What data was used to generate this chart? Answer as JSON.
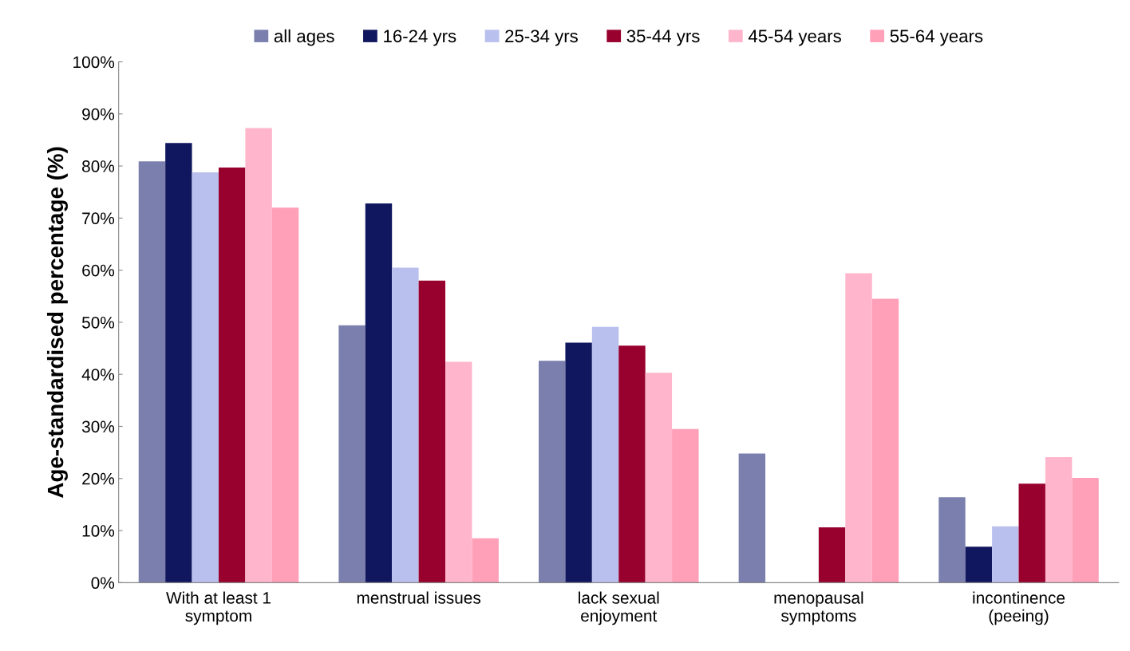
{
  "chart_data": {
    "type": "bar",
    "ylabel": "Age-standardised percentage (%)",
    "categories": [
      "With at least 1\nsymptom",
      "menstrual issues",
      "lack sexual\nenjoyment",
      "menopausal\nsymptoms",
      "incontinence\n(peeing)"
    ],
    "series": [
      {
        "name": "all ages",
        "color": "#7a7fae",
        "values": [
          80.9,
          49.4,
          42.6,
          24.8,
          16.4
        ]
      },
      {
        "name": "16-24 yrs",
        "color": "#11175e",
        "values": [
          84.4,
          72.8,
          46.1,
          null,
          6.9
        ]
      },
      {
        "name": "25-34 yrs",
        "color": "#b9c0ee",
        "values": [
          78.8,
          60.5,
          49.1,
          null,
          10.8
        ]
      },
      {
        "name": "35-44 yrs",
        "color": "#98002e",
        "values": [
          79.7,
          58.0,
          45.5,
          10.6,
          19.0
        ]
      },
      {
        "name": "45-54 years",
        "color": "#ffb6cc",
        "values": [
          87.3,
          42.4,
          40.3,
          59.4,
          24.1
        ]
      },
      {
        "name": "55-64 years",
        "color": "#ff9fb8",
        "values": [
          72.0,
          8.5,
          29.5,
          54.5,
          20.1
        ]
      }
    ],
    "ylim": [
      0,
      100
    ],
    "yticks": [
      {
        "value": 0,
        "label": "0%"
      },
      {
        "value": 10,
        "label": "10%"
      },
      {
        "value": 20,
        "label": "20%"
      },
      {
        "value": 30,
        "label": "30%"
      },
      {
        "value": 40,
        "label": "40%"
      },
      {
        "value": 50,
        "label": "50%"
      },
      {
        "value": 60,
        "label": "60%"
      },
      {
        "value": 70,
        "label": "70%"
      },
      {
        "value": 80,
        "label": "80%"
      },
      {
        "value": 90,
        "label": "90%"
      },
      {
        "value": 100,
        "label": "100%"
      }
    ],
    "legend": "top",
    "grid": false
  }
}
